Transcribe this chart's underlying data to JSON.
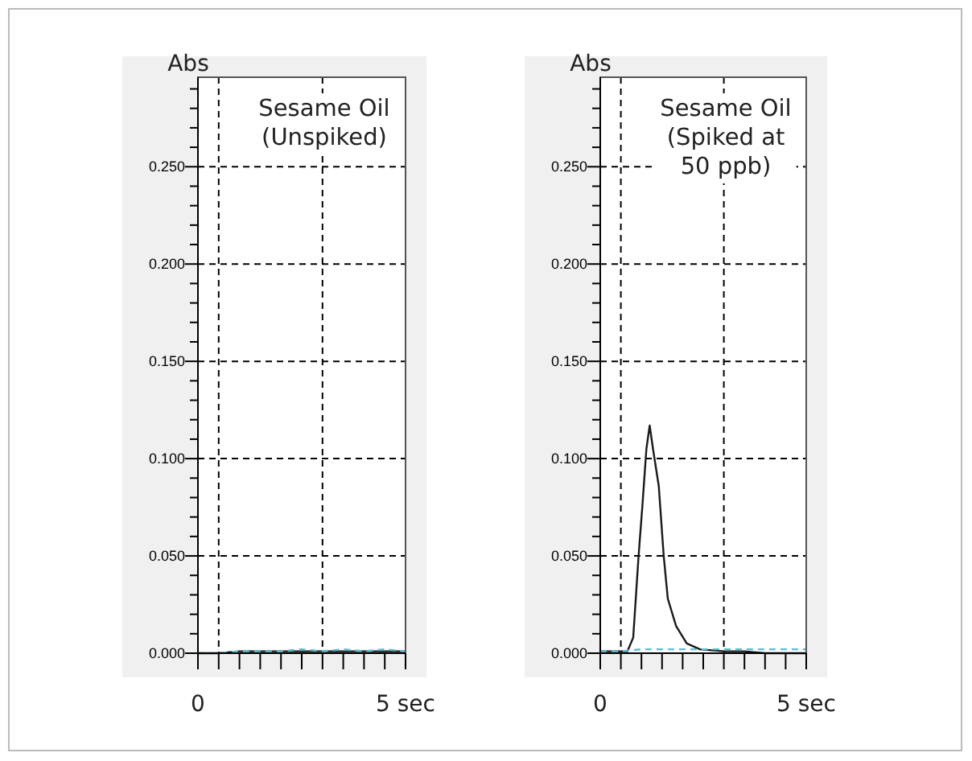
{
  "chart_data": [
    {
      "type": "line",
      "ylabel": "Abs",
      "annotations": [
        "Sesame Oil\n(Unspiked)"
      ],
      "xlim": [
        0,
        5
      ],
      "ylim": [
        0,
        0.296
      ],
      "xticks": [
        {
          "value": 0,
          "label": "0"
        },
        {
          "value": 0.5,
          "label": null
        },
        {
          "value": 1,
          "label": null
        },
        {
          "value": 1.5,
          "label": null
        },
        {
          "value": 2,
          "label": null
        },
        {
          "value": 2.5,
          "label": null
        },
        {
          "value": 3,
          "label": null
        },
        {
          "value": 3.5,
          "label": null
        },
        {
          "value": 4,
          "label": null
        },
        {
          "value": 4.5,
          "label": null
        },
        {
          "value": 5,
          "label": "5 sec"
        }
      ],
      "yticks": [
        {
          "value": 0,
          "label": "0.000"
        },
        {
          "value": 0.01,
          "label": null
        },
        {
          "value": 0.02,
          "label": null
        },
        {
          "value": 0.03,
          "label": null
        },
        {
          "value": 0.04,
          "label": null
        },
        {
          "value": 0.05,
          "label": "0.050"
        },
        {
          "value": 0.06,
          "label": null
        },
        {
          "value": 0.07,
          "label": null
        },
        {
          "value": 0.08,
          "label": null
        },
        {
          "value": 0.09,
          "label": null
        },
        {
          "value": 0.1,
          "label": "0.100"
        },
        {
          "value": 0.11,
          "label": null
        },
        {
          "value": 0.12,
          "label": null
        },
        {
          "value": 0.13,
          "label": null
        },
        {
          "value": 0.14,
          "label": null
        },
        {
          "value": 0.15,
          "label": "0.150"
        },
        {
          "value": 0.16,
          "label": null
        },
        {
          "value": 0.17,
          "label": null
        },
        {
          "value": 0.18,
          "label": null
        },
        {
          "value": 0.19,
          "label": null
        },
        {
          "value": 0.2,
          "label": "0.200"
        },
        {
          "value": 0.21,
          "label": null
        },
        {
          "value": 0.22,
          "label": null
        },
        {
          "value": 0.23,
          "label": null
        },
        {
          "value": 0.24,
          "label": null
        },
        {
          "value": 0.25,
          "label": "0.250"
        },
        {
          "value": 0.26,
          "label": null
        },
        {
          "value": 0.27,
          "label": null
        },
        {
          "value": 0.28,
          "label": null
        },
        {
          "value": 0.29,
          "label": null
        }
      ],
      "grid": "y",
      "ref_lines": [
        {
          "axis": "x",
          "value": 0.5,
          "label": null,
          "color": "#000000",
          "line_style": "dashed"
        },
        {
          "axis": "x",
          "value": 3,
          "label": null,
          "color": "#000000",
          "line_style": "dashed"
        }
      ],
      "series": [
        {
          "color": "#1a1a1a",
          "line_style": "solid",
          "x": [
            0,
            0.5,
            1,
            1.5,
            2,
            2.5,
            3,
            3.5,
            4,
            4.5,
            5
          ],
          "values": [
            0,
            0,
            0.001,
            0.001,
            0.001,
            0.001,
            0.001,
            0.001,
            0.001,
            0.001,
            0.001
          ]
        },
        {
          "color": "#5bc0d0",
          "line_style": "dashed",
          "x": [
            0,
            0.5,
            1,
            1.5,
            2,
            2.5,
            3,
            3.5,
            4,
            4.5,
            5
          ],
          "values": [
            0,
            0,
            0.001,
            0.001,
            0.001,
            0.002,
            0.001,
            0.002,
            0.001,
            0.002,
            0.001
          ]
        }
      ]
    },
    {
      "type": "line",
      "ylabel": "Abs",
      "annotations": [
        "Sesame Oil\n(Spiked at\n50 ppb)"
      ],
      "xlim": [
        0,
        5
      ],
      "ylim": [
        0,
        0.296
      ],
      "xticks": [
        {
          "value": 0,
          "label": "0"
        },
        {
          "value": 0.5,
          "label": null
        },
        {
          "value": 1,
          "label": null
        },
        {
          "value": 1.5,
          "label": null
        },
        {
          "value": 2,
          "label": null
        },
        {
          "value": 2.5,
          "label": null
        },
        {
          "value": 3,
          "label": null
        },
        {
          "value": 3.5,
          "label": null
        },
        {
          "value": 4,
          "label": null
        },
        {
          "value": 4.5,
          "label": null
        },
        {
          "value": 5,
          "label": "5 sec"
        }
      ],
      "yticks": [
        {
          "value": 0,
          "label": "0.000"
        },
        {
          "value": 0.01,
          "label": null
        },
        {
          "value": 0.02,
          "label": null
        },
        {
          "value": 0.03,
          "label": null
        },
        {
          "value": 0.04,
          "label": null
        },
        {
          "value": 0.05,
          "label": "0.050"
        },
        {
          "value": 0.06,
          "label": null
        },
        {
          "value": 0.07,
          "label": null
        },
        {
          "value": 0.08,
          "label": null
        },
        {
          "value": 0.09,
          "label": null
        },
        {
          "value": 0.1,
          "label": "0.100"
        },
        {
          "value": 0.11,
          "label": null
        },
        {
          "value": 0.12,
          "label": null
        },
        {
          "value": 0.13,
          "label": null
        },
        {
          "value": 0.14,
          "label": null
        },
        {
          "value": 0.15,
          "label": "0.150"
        },
        {
          "value": 0.16,
          "label": null
        },
        {
          "value": 0.17,
          "label": null
        },
        {
          "value": 0.18,
          "label": null
        },
        {
          "value": 0.19,
          "label": null
        },
        {
          "value": 0.2,
          "label": "0.200"
        },
        {
          "value": 0.21,
          "label": null
        },
        {
          "value": 0.22,
          "label": null
        },
        {
          "value": 0.23,
          "label": null
        },
        {
          "value": 0.24,
          "label": null
        },
        {
          "value": 0.25,
          "label": "0.250"
        },
        {
          "value": 0.26,
          "label": null
        },
        {
          "value": 0.27,
          "label": null
        },
        {
          "value": 0.28,
          "label": null
        },
        {
          "value": 0.29,
          "label": null
        }
      ],
      "grid": "y",
      "ref_lines": [
        {
          "axis": "x",
          "value": 0.5,
          "label": null,
          "color": "#000000",
          "line_style": "dashed"
        },
        {
          "axis": "x",
          "value": 3,
          "label": null,
          "color": "#000000",
          "line_style": "dashed"
        }
      ],
      "series": [
        {
          "color": "#1a1a1a",
          "line_style": "solid",
          "x": [
            0,
            0.4,
            0.66,
            0.8,
            0.93,
            1.02,
            1.12,
            1.2,
            1.28,
            1.42,
            1.54,
            1.64,
            1.84,
            2.1,
            2.42,
            3,
            3.5,
            4,
            4.5,
            5
          ],
          "values": [
            0.001,
            0.001,
            0.001,
            0.008,
            0.05,
            0.075,
            0.105,
            0.117,
            0.105,
            0.086,
            0.05,
            0.028,
            0.014,
            0.005,
            0.002,
            0.001,
            0.001,
            0,
            0,
            0
          ]
        },
        {
          "color": "#5bc0d0",
          "line_style": "dashed",
          "x": [
            0,
            0.5,
            1,
            1.5,
            2,
            2.5,
            3,
            3.5,
            4,
            4.5,
            5
          ],
          "values": [
            0.001,
            0.001,
            0.002,
            0.002,
            0.002,
            0.002,
            0.002,
            0.002,
            0.002,
            0.002,
            0.002
          ]
        }
      ]
    }
  ]
}
